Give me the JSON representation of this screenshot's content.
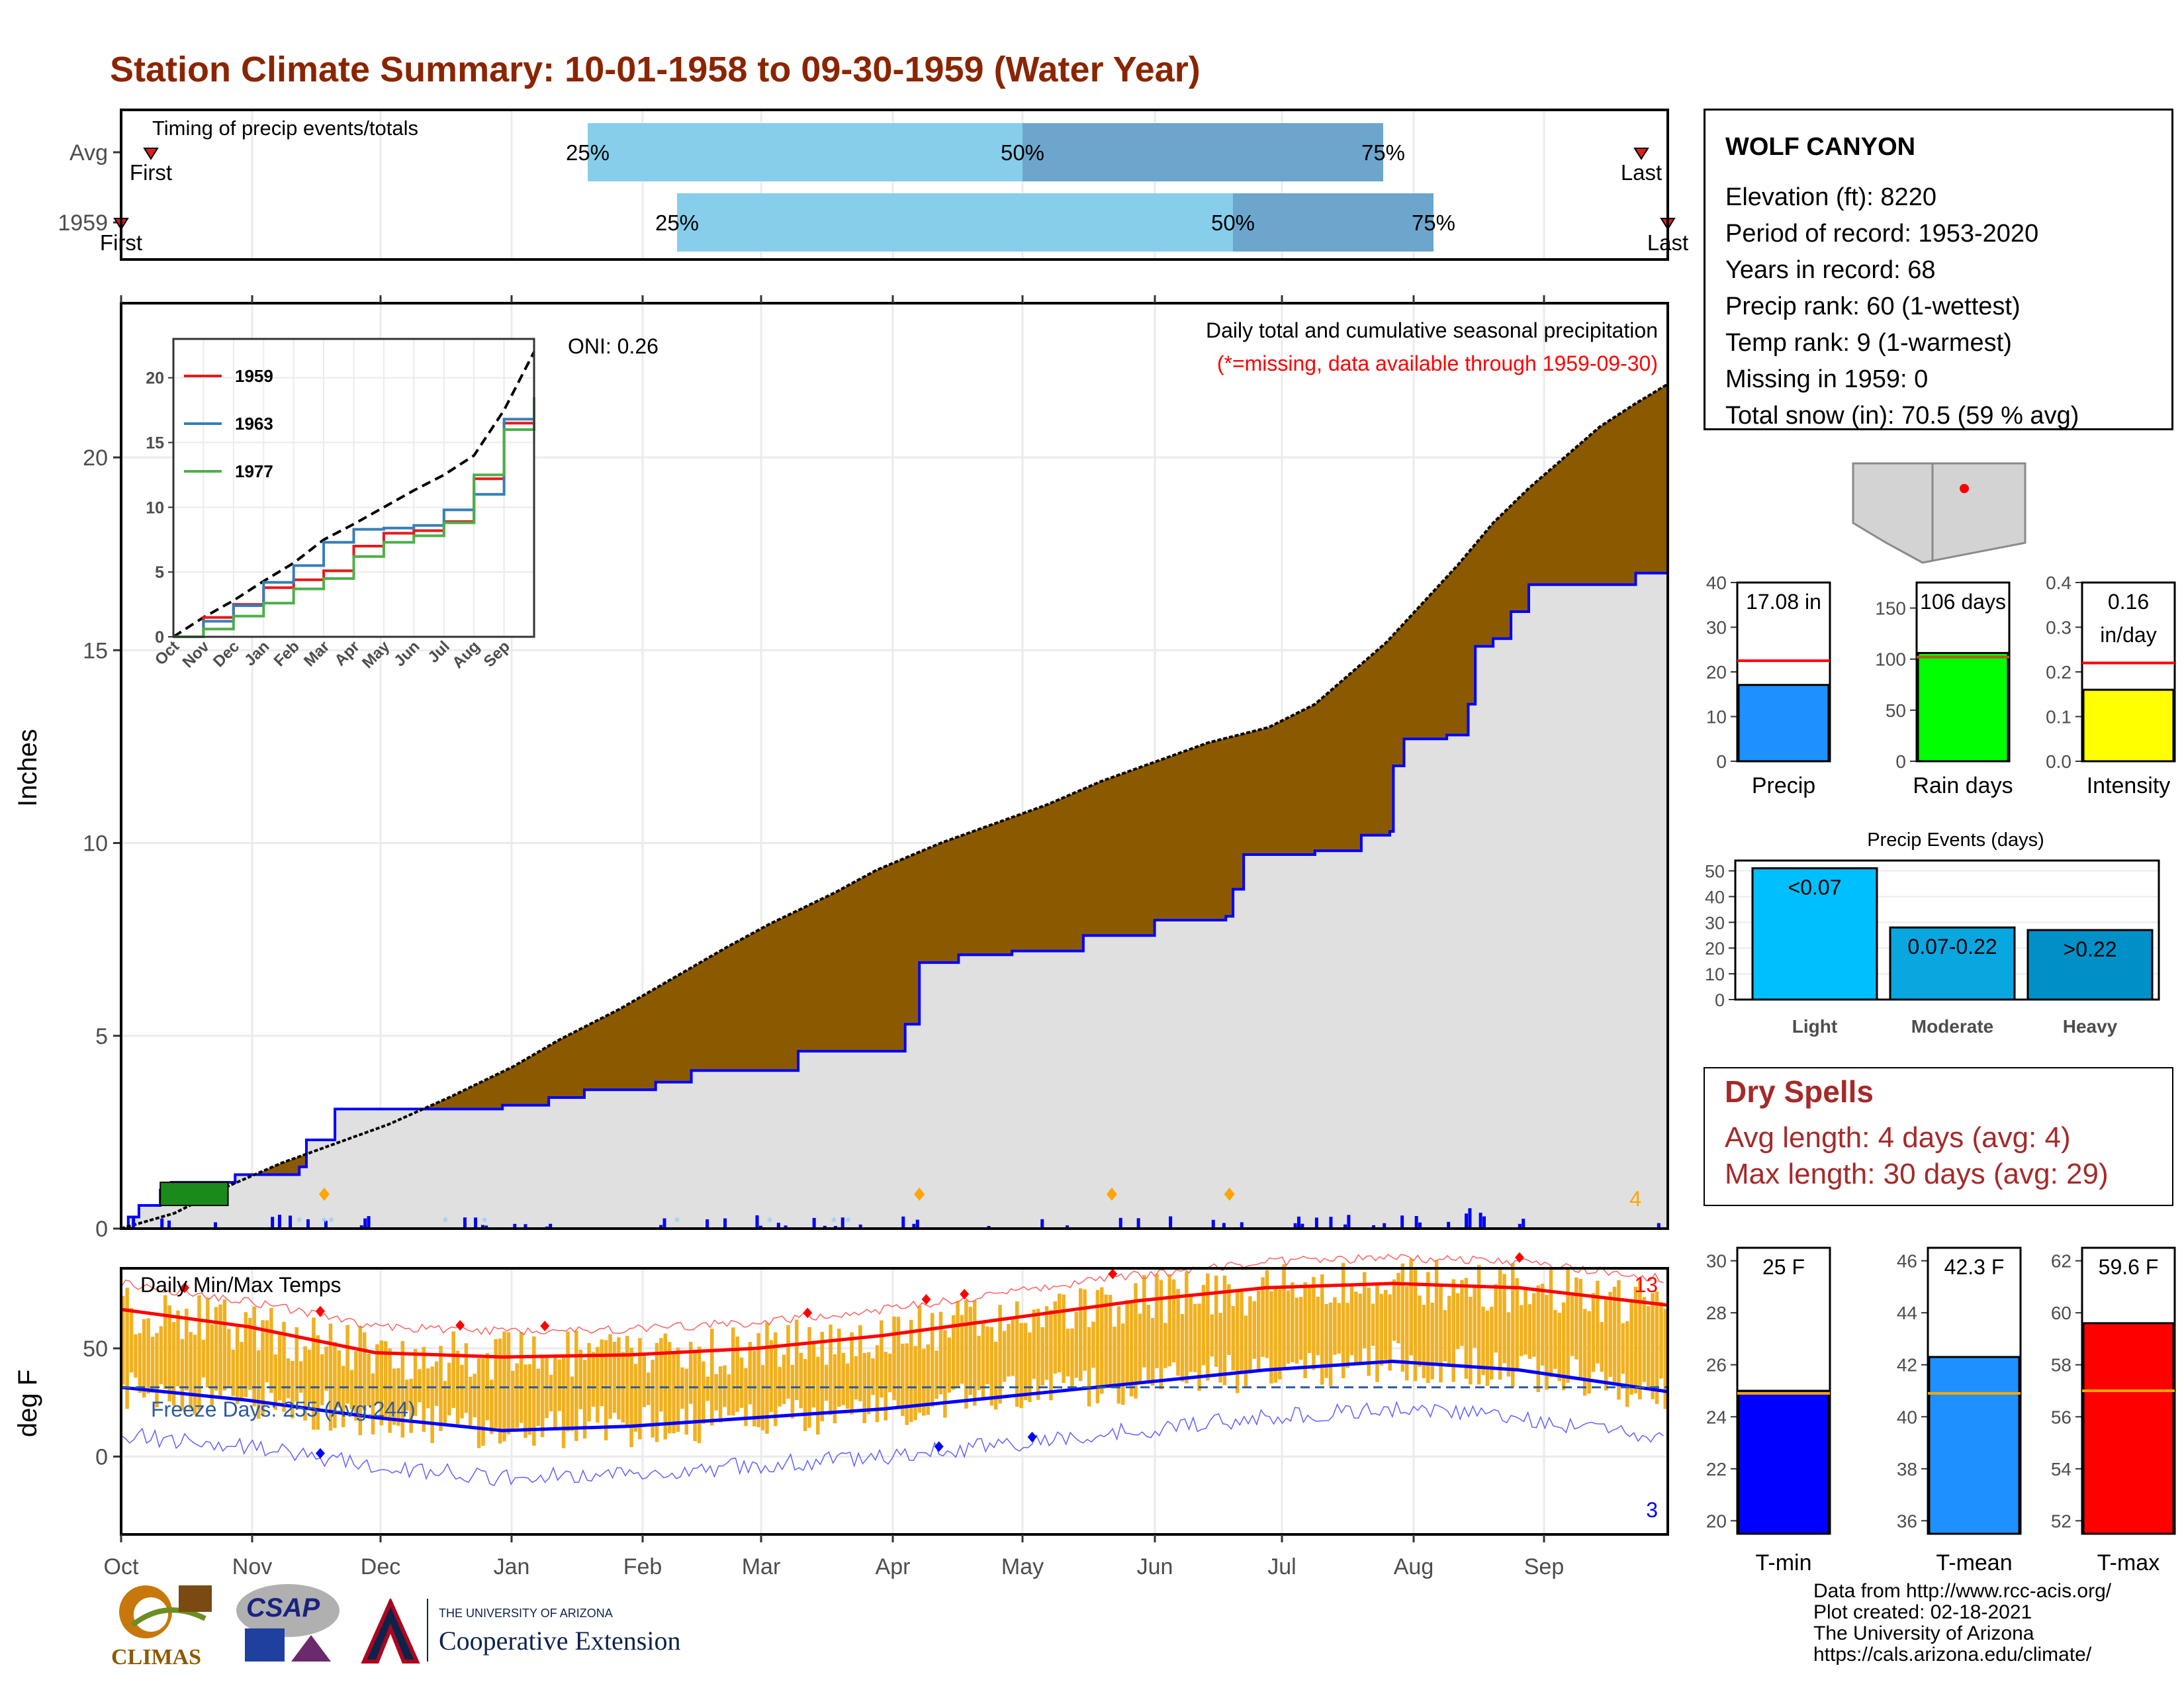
{
  "title": "Station Climate Summary: 10-01-1958 to 09-30-1959 (Water Year)",
  "timing": {
    "label": "Timing of precip events/totals",
    "rows": [
      {
        "name": "Avg",
        "q25": "Jan 27",
        "q50": "May 1",
        "q75": "Jul 24",
        "first": "Oct 8",
        "last": "Sep 26",
        "first_label": "First",
        "last_label": "Last"
      },
      {
        "name": "1959",
        "q25": "Feb 5",
        "q50": "Jun 21",
        "q75": "Aug 5",
        "first": "Oct 1",
        "last": "Sep 30",
        "first_label": "First",
        "last_label": "Last"
      }
    ],
    "pct_labels": [
      "25%",
      "50%",
      "75%"
    ]
  },
  "station": {
    "name": "WOLF CANYON",
    "elevation": "Elevation (ft): 8220",
    "period": "Period of record: 1953-2020",
    "years": "Years in record: 68",
    "precip_rank": "Precip rank: 60 (1-wettest)",
    "temp_rank": "Temp rank: 9 (1-warmest)",
    "missing": "Missing in 1959: 0",
    "snow": "Total snow (in): 70.5 (59 % avg)"
  },
  "precip_main": {
    "ylabel": "Inches",
    "yticks": [
      "0",
      "5",
      "10",
      "15",
      "20"
    ],
    "ylim": [
      0,
      24
    ],
    "months": [
      "Oct",
      "Nov",
      "Dec",
      "Jan",
      "Feb",
      "Mar",
      "Apr",
      "May",
      "Jun",
      "Jul",
      "Aug",
      "Sep"
    ],
    "header": "Daily total and cumulative seasonal precipitation",
    "missing_note": "(*=missing, data available through 1959-09-30)",
    "oni": "ONI: 0.26",
    "corner_count": "4",
    "colors": {
      "avg_cum": "#8b5a00",
      "obs_cum_fill": "#e0e0e0",
      "obs_line": "#0000ff",
      "snow": "#87cefa",
      "event_marker": "#ffa500"
    },
    "avg_cumulative": [
      [
        0,
        0
      ],
      [
        15,
        0.4
      ],
      [
        30,
        1.1
      ],
      [
        45,
        1.7
      ],
      [
        60,
        2.2
      ],
      [
        75,
        2.7
      ],
      [
        92,
        3.4
      ],
      [
        110,
        4.2
      ],
      [
        123,
        4.9
      ],
      [
        140,
        5.7
      ],
      [
        155,
        6.5
      ],
      [
        170,
        7.3
      ],
      [
        182,
        7.9
      ],
      [
        200,
        8.7
      ],
      [
        212,
        9.3
      ],
      [
        230,
        10.0
      ],
      [
        245,
        10.5
      ],
      [
        260,
        11.0
      ],
      [
        275,
        11.6
      ],
      [
        290,
        12.1
      ],
      [
        305,
        12.6
      ],
      [
        322,
        13.0
      ],
      [
        335,
        13.6
      ],
      [
        345,
        14.4
      ],
      [
        355,
        15.2
      ],
      [
        365,
        16.2
      ],
      [
        375,
        17.2
      ],
      [
        385,
        18.3
      ],
      [
        395,
        19.2
      ],
      [
        405,
        20.0
      ],
      [
        415,
        20.8
      ],
      [
        425,
        21.4
      ],
      [
        434,
        21.9
      ]
    ],
    "obs_cumulative": [
      [
        0,
        0
      ],
      [
        2,
        0.3
      ],
      [
        5,
        0.6
      ],
      [
        10,
        0.6
      ],
      [
        11,
        1.0
      ],
      [
        14,
        1.2
      ],
      [
        30,
        1.2
      ],
      [
        32,
        1.4
      ],
      [
        50,
        1.6
      ],
      [
        52,
        2.3
      ],
      [
        58,
        2.3
      ],
      [
        60,
        3.1
      ],
      [
        75,
        3.1
      ],
      [
        78,
        3.1
      ],
      [
        105,
        3.1
      ],
      [
        107,
        3.2
      ],
      [
        118,
        3.2
      ],
      [
        120,
        3.4
      ],
      [
        130,
        3.6
      ],
      [
        150,
        3.8
      ],
      [
        160,
        4.1
      ],
      [
        190,
        4.6
      ],
      [
        220,
        5.3
      ],
      [
        224,
        6.9
      ],
      [
        235,
        7.1
      ],
      [
        250,
        7.2
      ],
      [
        270,
        7.6
      ],
      [
        290,
        8.0
      ],
      [
        310,
        8.1
      ],
      [
        312,
        8.8
      ],
      [
        315,
        9.7
      ],
      [
        335,
        9.8
      ],
      [
        348,
        10.2
      ],
      [
        356,
        10.3
      ],
      [
        357,
        12.0
      ],
      [
        360,
        12.7
      ],
      [
        372,
        12.8
      ],
      [
        378,
        13.6
      ],
      [
        380,
        15.1
      ],
      [
        385,
        15.3
      ],
      [
        390,
        16.0
      ],
      [
        395,
        16.7
      ],
      [
        420,
        16.7
      ],
      [
        425,
        17.0
      ],
      [
        434,
        17.1
      ]
    ]
  },
  "inset": {
    "yticks": [
      "0",
      "5",
      "10",
      "15",
      "20"
    ],
    "months": [
      "Oct",
      "Nov",
      "Dec",
      "Jan",
      "Feb",
      "Mar",
      "Apr",
      "May",
      "Jun",
      "Jul",
      "Aug",
      "Sep"
    ],
    "series": [
      {
        "name": "1959",
        "color": "#e41a1c"
      },
      {
        "name": "1963",
        "color": "#377eb8"
      },
      {
        "name": "1977",
        "color": "#4daf4a"
      }
    ],
    "avg_line": [
      [
        0,
        0
      ],
      [
        1,
        1.5
      ],
      [
        2,
        2.8
      ],
      [
        3,
        4.3
      ],
      [
        4,
        5.7
      ],
      [
        5,
        7.5
      ],
      [
        6,
        8.7
      ],
      [
        7,
        10.0
      ],
      [
        8,
        11.3
      ],
      [
        9,
        12.5
      ],
      [
        10,
        14.0
      ],
      [
        11,
        17.5
      ],
      [
        12,
        22.0
      ]
    ],
    "lines": [
      [
        [
          0,
          0
        ],
        [
          1,
          1.5
        ],
        [
          2,
          2.5
        ],
        [
          3,
          3.8
        ],
        [
          4,
          4.4
        ],
        [
          5,
          5.1
        ],
        [
          6,
          7.0
        ],
        [
          7,
          8.0
        ],
        [
          8,
          8.2
        ],
        [
          9,
          8.9
        ],
        [
          10,
          12.2
        ],
        [
          11,
          16.5
        ],
        [
          12,
          17.1
        ]
      ],
      [
        [
          0,
          0
        ],
        [
          1,
          1.2
        ],
        [
          2,
          2.4
        ],
        [
          3,
          4.2
        ],
        [
          4,
          5.5
        ],
        [
          5,
          7.3
        ],
        [
          6,
          8.3
        ],
        [
          7,
          8.4
        ],
        [
          8,
          8.6
        ],
        [
          9,
          9.8
        ],
        [
          10,
          11.0
        ],
        [
          11,
          16.8
        ],
        [
          12,
          18.0
        ]
      ],
      [
        [
          0,
          0
        ],
        [
          1,
          0.6
        ],
        [
          2,
          1.6
        ],
        [
          3,
          2.6
        ],
        [
          4,
          3.7
        ],
        [
          5,
          4.5
        ],
        [
          6,
          6.2
        ],
        [
          7,
          7.3
        ],
        [
          8,
          7.8
        ],
        [
          9,
          8.8
        ],
        [
          10,
          12.5
        ],
        [
          11,
          16.0
        ],
        [
          12,
          18.5
        ]
      ]
    ]
  },
  "bars_top": [
    {
      "label": "Precip",
      "value_text": "17.08 in",
      "value": 17.08,
      "avg": 22.5,
      "yticks": [
        "0",
        "10",
        "20",
        "30",
        "40"
      ],
      "ymax": 40,
      "color": "#1e90ff"
    },
    {
      "label": "Rain days",
      "value_text": "106 days",
      "value": 106,
      "avg": 102,
      "yticks": [
        "0",
        "50",
        "100",
        "150"
      ],
      "ymax": 175,
      "color": "#00ff00"
    },
    {
      "label": "Intensity",
      "value_text": "0.16",
      "value_text2": "in/day",
      "value": 0.16,
      "avg": 0.22,
      "yticks": [
        "0.0",
        "0.1",
        "0.2",
        "0.3",
        "0.4"
      ],
      "ymax": 0.4,
      "color": "#ffff00"
    }
  ],
  "events": {
    "title": "Precip Events (days)",
    "yticks": [
      "0",
      "10",
      "20",
      "30",
      "40",
      "50"
    ],
    "categories": [
      "Light",
      "Moderate",
      "Heavy"
    ],
    "labels": [
      "<0.07",
      "0.07-0.22",
      ">0.22"
    ],
    "values": [
      51,
      28,
      27
    ],
    "colors": [
      "#00bfff",
      "#0aa6e0",
      "#0090c8"
    ]
  },
  "dry": {
    "title": "Dry Spells",
    "avg_length": "Avg length: 4 days (avg: 4)",
    "max_length": "Max length: 30 days (avg: 29)"
  },
  "temps": {
    "title": "Daily Min/Max Temps",
    "ylabel": "deg F",
    "yticks": [
      "0",
      "50"
    ],
    "freeze": "Freeze Days: 255 (Avg:244)",
    "count_hot": "13",
    "count_cold": "3",
    "tmax_avg": [
      [
        0,
        68
      ],
      [
        30,
        60
      ],
      [
        60,
        48
      ],
      [
        90,
        46
      ],
      [
        120,
        47
      ],
      [
        150,
        50
      ],
      [
        180,
        56
      ],
      [
        210,
        64
      ],
      [
        240,
        72
      ],
      [
        270,
        78
      ],
      [
        300,
        80
      ],
      [
        330,
        78
      ],
      [
        365,
        70
      ]
    ],
    "tmin_avg": [
      [
        0,
        32
      ],
      [
        30,
        26
      ],
      [
        60,
        18
      ],
      [
        90,
        12
      ],
      [
        120,
        14
      ],
      [
        150,
        18
      ],
      [
        180,
        22
      ],
      [
        210,
        28
      ],
      [
        240,
        34
      ],
      [
        270,
        40
      ],
      [
        300,
        44
      ],
      [
        330,
        40
      ],
      [
        365,
        30
      ]
    ],
    "freeze_line": 32
  },
  "bars_temp": [
    {
      "label": "T-min",
      "value_text": "25 F",
      "value": 25.0,
      "avg": 24.9,
      "yticks": [
        "20",
        "22",
        "24",
        "26",
        "28",
        "30"
      ],
      "ymin": 19.5,
      "ymax": 30.5,
      "color": "#0000ff"
    },
    {
      "label": "T-mean",
      "value_text": "42.3 F",
      "value": 42.3,
      "avg": 40.9,
      "yticks": [
        "36",
        "38",
        "40",
        "42",
        "44",
        "46"
      ],
      "ymin": 35.5,
      "ymax": 46.5,
      "color": "#1e90ff"
    },
    {
      "label": "T-max",
      "value_text": "59.6 F",
      "value": 59.6,
      "avg": 57.0,
      "yticks": [
        "52",
        "54",
        "56",
        "58",
        "60",
        "62"
      ],
      "ymin": 51.5,
      "ymax": 62.5,
      "color": "#ff0000"
    }
  ],
  "footer": {
    "line1": "Data from http://www.rcc-acis.org/",
    "line2": "Plot created: 02-18-2021",
    "line3": "The University of Arizona",
    "line4": "https://cals.arizona.edu/climate/",
    "climas": "CLIMAS",
    "csap": "CSAP",
    "ua_small": "THE UNIVERSITY OF ARIZONA",
    "ua_big": "Cooperative Extension"
  }
}
